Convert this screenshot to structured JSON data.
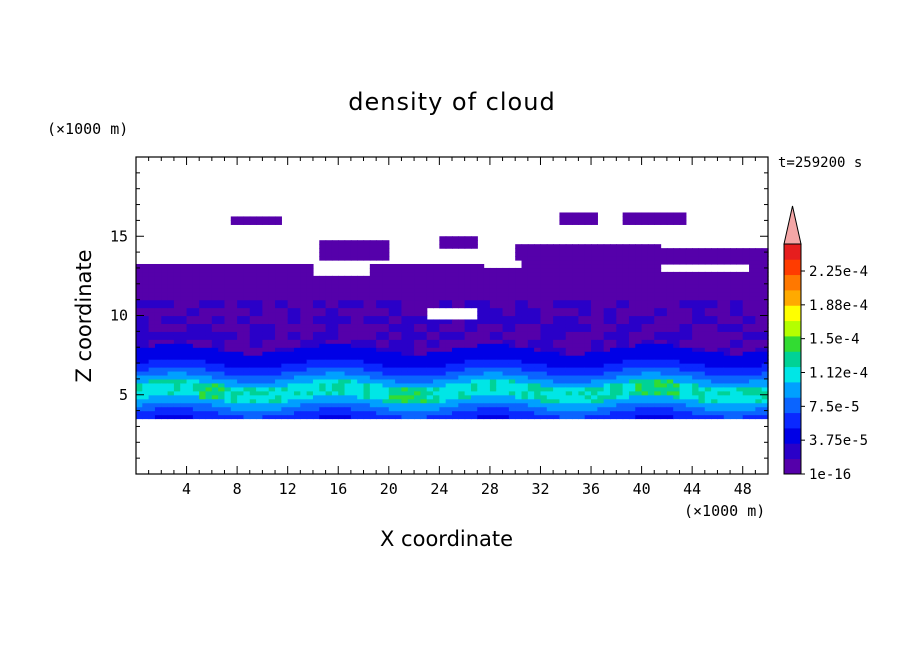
{
  "chart_data": {
    "type": "heatmap",
    "title": "density of cloud",
    "xlabel": "X coordinate",
    "ylabel": "Z coordinate",
    "x_unit": "(×1000 m)",
    "y_unit": "(×1000 m)",
    "time_label": "t=259200 s",
    "xlim": [
      0,
      50
    ],
    "ylim": [
      0,
      20
    ],
    "x_ticks": [
      "4",
      "8",
      "12",
      "16",
      "20",
      "24",
      "28",
      "32",
      "36",
      "40",
      "44",
      "48"
    ],
    "y_ticks": [
      "5",
      "10",
      "15"
    ],
    "colorbar": {
      "labels": [
        "2.25e-4",
        "1.88e-4",
        "1.5e-4",
        "1.12e-4",
        "7.5e-5",
        "3.75e-5",
        "1e-16"
      ],
      "levels": [
        1e-16,
        1.875e-05,
        3.75e-05,
        5.625e-05,
        7.5e-05,
        9.375e-05,
        0.000112,
        0.00013125,
        0.00015,
        0.00016875,
        0.000188,
        0.00020625,
        0.000225,
        0.00024375
      ],
      "colors": [
        "#5500aa",
        "#2a00c8",
        "#0000e6",
        "#0a28ff",
        "#0a64ff",
        "#00a0ff",
        "#00e6e6",
        "#00d296",
        "#32dc32",
        "#b4ff00",
        "#ffff00",
        "#ffaa00",
        "#ff7800",
        "#ff3c00",
        "#e61e1e"
      ],
      "extend_color": "#f4a6a6"
    },
    "features": {
      "cloud_bottom_km": 3.5,
      "cloud_top_km": 13.3,
      "dense_layer_km": [
        4,
        6.5
      ],
      "max_density_near_x_km": [
        21,
        41
      ]
    }
  }
}
